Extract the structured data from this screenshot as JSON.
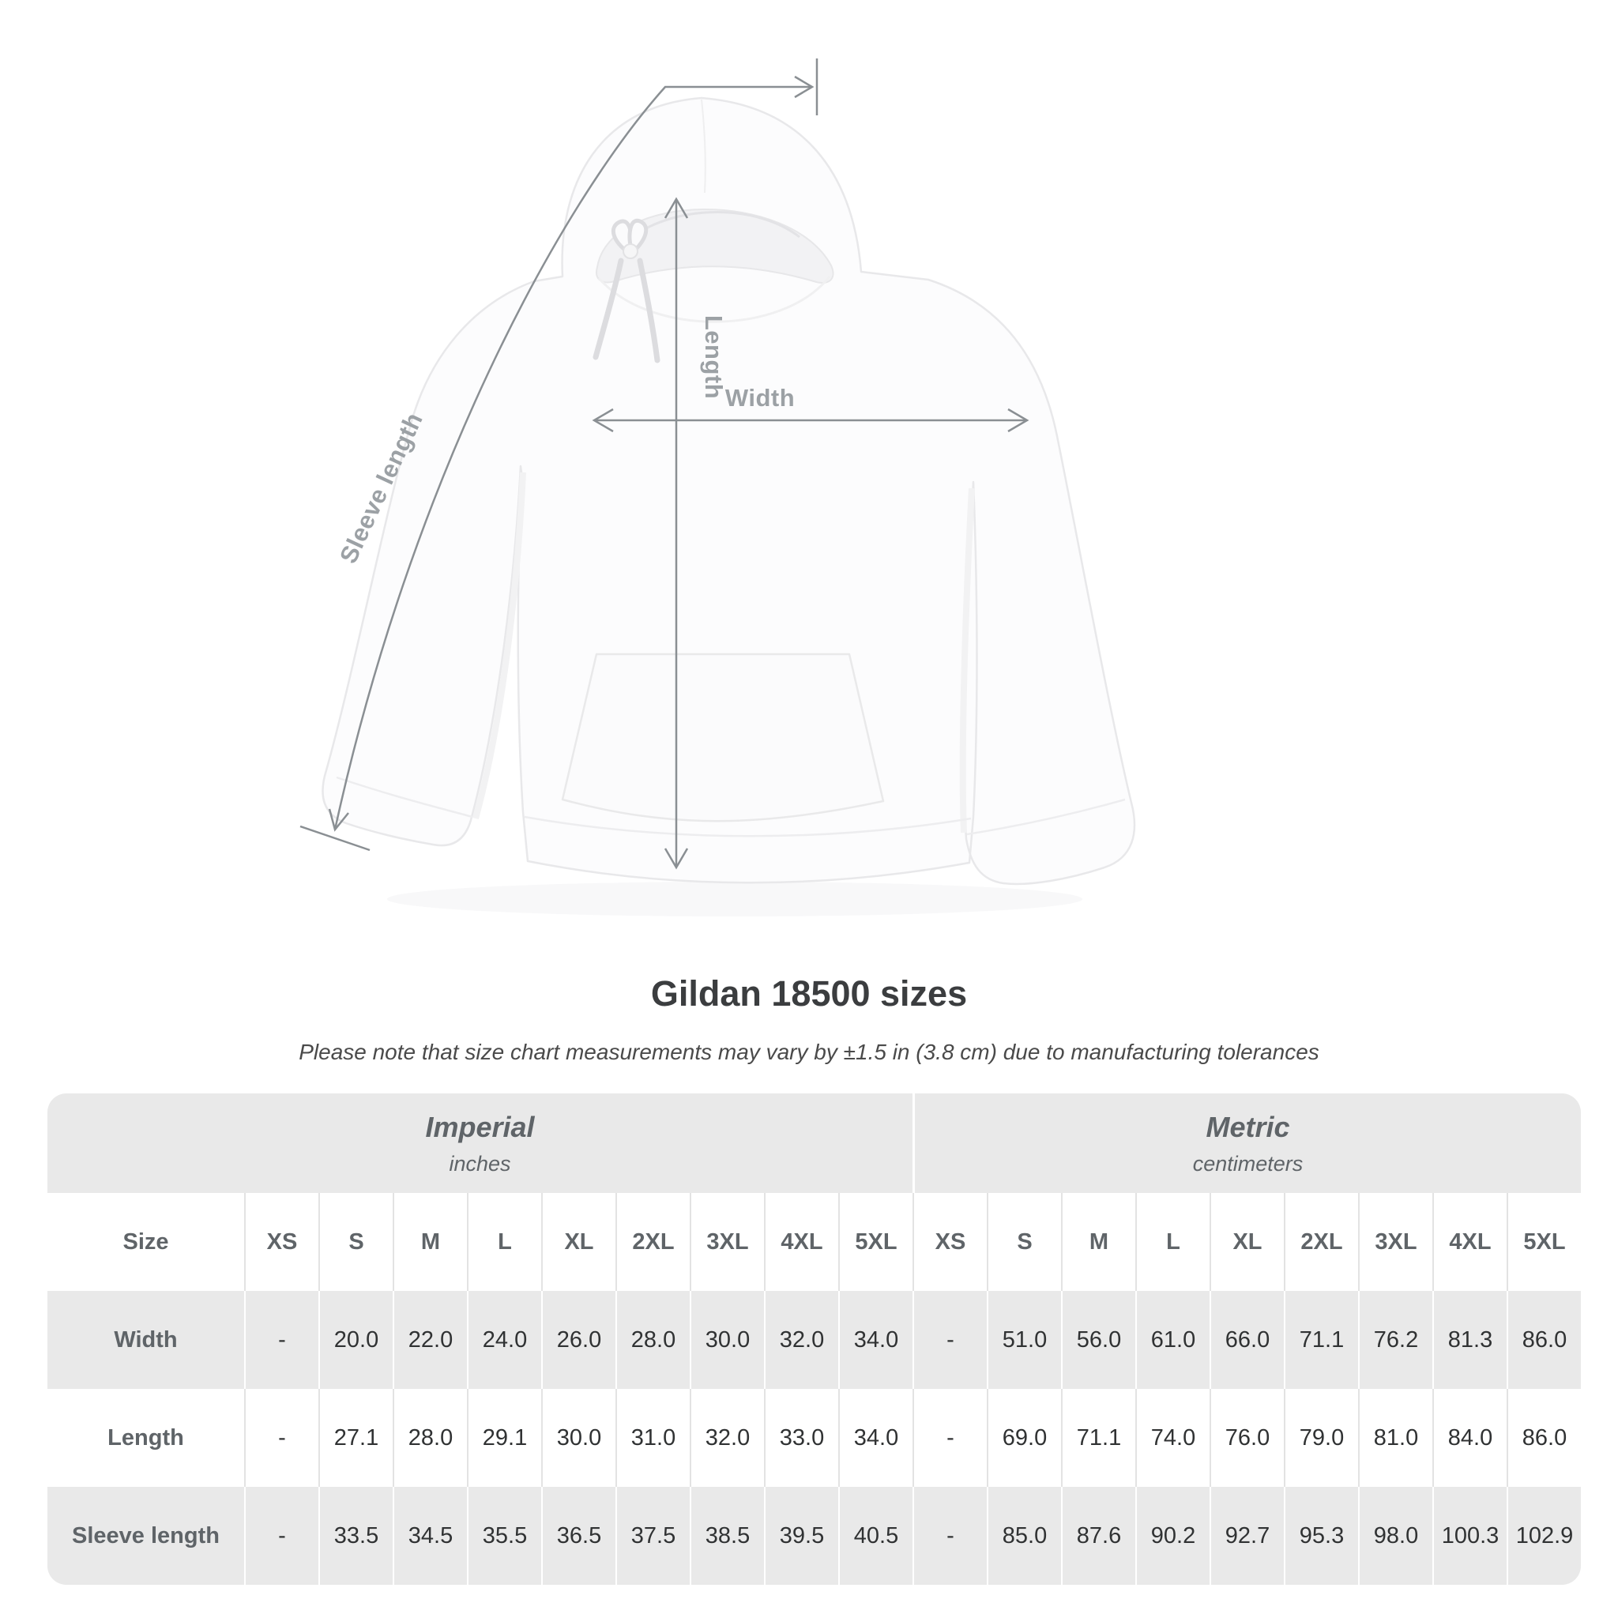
{
  "title": "Gildan 18500 sizes",
  "subtitle": "Please note that size chart measurements may vary by ±1.5 in (3.8 cm) due to manufacturing tolerances",
  "diagram": {
    "length_label": "Length",
    "width_label": "Width",
    "sleeve_label": "Sleeve length",
    "line_color": "#8a8f93",
    "label_color": "#9ca1a5"
  },
  "chart_data": {
    "type": "table",
    "title": "Gildan 18500 sizes",
    "size_header": "Size",
    "groups": [
      {
        "label": "Imperial",
        "sublabel": "inches",
        "sizes": [
          "XS",
          "S",
          "M",
          "L",
          "XL",
          "2XL",
          "3XL",
          "4XL",
          "5XL"
        ]
      },
      {
        "label": "Metric",
        "sublabel": "centimeters",
        "sizes": [
          "XS",
          "S",
          "M",
          "L",
          "XL",
          "2XL",
          "3XL",
          "4XL",
          "5XL"
        ]
      }
    ],
    "rows": [
      {
        "label": "Width",
        "imperial": [
          "-",
          "20.0",
          "22.0",
          "24.0",
          "26.0",
          "28.0",
          "30.0",
          "32.0",
          "34.0"
        ],
        "metric": [
          "-",
          "51.0",
          "56.0",
          "61.0",
          "66.0",
          "71.1",
          "76.2",
          "81.3",
          "86.0"
        ]
      },
      {
        "label": "Length",
        "imperial": [
          "-",
          "27.1",
          "28.0",
          "29.1",
          "30.0",
          "31.0",
          "32.0",
          "33.0",
          "34.0"
        ],
        "metric": [
          "-",
          "69.0",
          "71.1",
          "74.0",
          "76.0",
          "79.0",
          "81.0",
          "84.0",
          "86.0"
        ]
      },
      {
        "label": "Sleeve length",
        "imperial": [
          "-",
          "33.5",
          "34.5",
          "35.5",
          "36.5",
          "37.5",
          "38.5",
          "39.5",
          "40.5"
        ],
        "metric": [
          "-",
          "85.0",
          "87.6",
          "90.2",
          "92.7",
          "95.3",
          "98.0",
          "100.3",
          "102.9"
        ]
      }
    ]
  },
  "colors": {
    "band": "#e9e9e9",
    "header_text": "#5f6468",
    "value_text": "#303233",
    "title_text": "#3b3d3f",
    "subtitle_text": "#4a4a4a"
  }
}
